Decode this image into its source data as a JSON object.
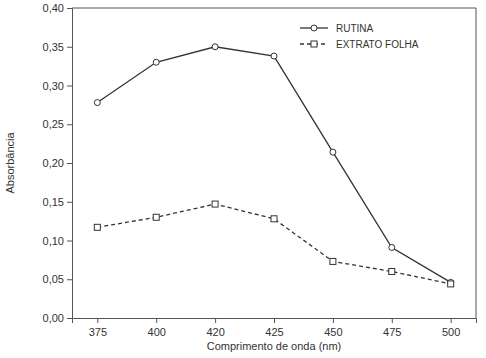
{
  "chart_data": {
    "type": "line",
    "x_label": "Comprimento de onda (nm)",
    "y_label": "Absorbância",
    "categories": [
      "375",
      "400",
      "420",
      "425",
      "450",
      "475",
      "500"
    ],
    "series": [
      {
        "name": "RUTINA",
        "color": "#333333",
        "marker": "circle",
        "line_style": "solid",
        "values": [
          0.278,
          0.33,
          0.35,
          0.338,
          0.214,
          0.091,
          0.046
        ]
      },
      {
        "name": "EXTRATO FOLHA",
        "color": "#333333",
        "marker": "square",
        "line_style": "dashed",
        "values": [
          0.117,
          0.13,
          0.147,
          0.128,
          0.073,
          0.06,
          0.044
        ]
      }
    ],
    "ylim": [
      0,
      0.4
    ],
    "yticks": [
      {
        "value": 0,
        "label": "0,00"
      },
      {
        "value": 0.05,
        "label": "0,05"
      },
      {
        "value": 0.1,
        "label": "0,10"
      },
      {
        "value": 0.15,
        "label": "0,15"
      },
      {
        "value": 0.2,
        "label": "0,20"
      },
      {
        "value": 0.25,
        "label": "0,25"
      },
      {
        "value": 0.3,
        "label": "0,30"
      },
      {
        "value": 0.35,
        "label": "0,35"
      },
      {
        "value": 0.4,
        "label": "0,40"
      }
    ],
    "grid": false,
    "legend": "upper right"
  }
}
